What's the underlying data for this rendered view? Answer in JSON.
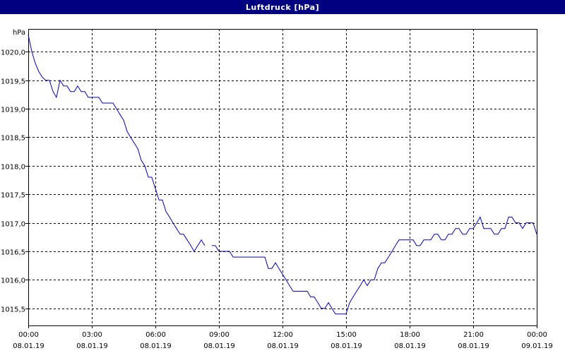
{
  "window": {
    "title": "Luftdruck [hPa]"
  },
  "chart_data": {
    "type": "line",
    "title": "Luftdruck [hPa]",
    "ylabel": "hPa",
    "xlabel": "",
    "grid": true,
    "ylim": [
      1015.2,
      1020.4
    ],
    "yticks": [
      "1020,0",
      "1019,5",
      "1019,0",
      "1018,5",
      "1018,0",
      "1017,5",
      "1017,0",
      "1016,5",
      "1016,0",
      "1015,5"
    ],
    "ytick_values": [
      1020.0,
      1019.5,
      1019.0,
      1018.5,
      1018.0,
      1017.5,
      1017.0,
      1016.5,
      1016.0,
      1015.5
    ],
    "xlim_hours": [
      0,
      24
    ],
    "xticks": [
      {
        "time": "00:00",
        "date": "08.01.19"
      },
      {
        "time": "03:00",
        "date": "08.01.19"
      },
      {
        "time": "06:00",
        "date": "08.01.19"
      },
      {
        "time": "09:00",
        "date": "08.01.19"
      },
      {
        "time": "12:00",
        "date": "08.01.19"
      },
      {
        "time": "15:00",
        "date": "08.01.19"
      },
      {
        "time": "18:00",
        "date": "08.01.19"
      },
      {
        "time": "21:00",
        "date": "08.01.19"
      },
      {
        "time": "00:00",
        "date": "09.01.19"
      }
    ],
    "series": [
      {
        "color": "#0000cc",
        "segments": [
          [
            [
              0.0,
              1020.3
            ],
            [
              0.17,
              1020.0
            ],
            [
              0.33,
              1019.8
            ],
            [
              0.5,
              1019.65
            ],
            [
              0.67,
              1019.55
            ],
            [
              0.83,
              1019.5
            ],
            [
              1.0,
              1019.5
            ],
            [
              1.17,
              1019.3
            ],
            [
              1.33,
              1019.2
            ],
            [
              1.5,
              1019.5
            ],
            [
              1.67,
              1019.4
            ],
            [
              1.83,
              1019.4
            ],
            [
              2.0,
              1019.3
            ],
            [
              2.17,
              1019.3
            ],
            [
              2.33,
              1019.4
            ],
            [
              2.5,
              1019.3
            ],
            [
              2.67,
              1019.3
            ],
            [
              2.83,
              1019.2
            ],
            [
              3.0,
              1019.2
            ],
            [
              3.17,
              1019.2
            ],
            [
              3.33,
              1019.2
            ],
            [
              3.5,
              1019.1
            ],
            [
              3.67,
              1019.1
            ],
            [
              3.83,
              1019.1
            ],
            [
              4.0,
              1019.1
            ],
            [
              4.17,
              1019.0
            ],
            [
              4.33,
              1018.9
            ],
            [
              4.5,
              1018.8
            ],
            [
              4.67,
              1018.6
            ],
            [
              4.83,
              1018.5
            ],
            [
              5.0,
              1018.4
            ],
            [
              5.17,
              1018.3
            ],
            [
              5.33,
              1018.1
            ],
            [
              5.5,
              1018.0
            ],
            [
              5.67,
              1017.8
            ],
            [
              5.83,
              1017.8
            ],
            [
              6.0,
              1017.6
            ],
            [
              6.17,
              1017.4
            ],
            [
              6.33,
              1017.4
            ],
            [
              6.5,
              1017.2
            ],
            [
              6.67,
              1017.1
            ],
            [
              6.83,
              1017.0
            ],
            [
              7.0,
              1016.9
            ],
            [
              7.17,
              1016.8
            ],
            [
              7.33,
              1016.8
            ],
            [
              7.5,
              1016.7
            ],
            [
              7.67,
              1016.6
            ],
            [
              7.83,
              1016.5
            ],
            [
              8.0,
              1016.6
            ],
            [
              8.17,
              1016.7
            ],
            [
              8.33,
              1016.6
            ]
          ],
          [
            [
              8.67,
              1016.6
            ],
            [
              8.83,
              1016.6
            ],
            [
              9.0,
              1016.5
            ],
            [
              9.17,
              1016.5
            ],
            [
              9.33,
              1016.5
            ],
            [
              9.5,
              1016.5
            ],
            [
              9.67,
              1016.4
            ],
            [
              9.83,
              1016.4
            ],
            [
              10.0,
              1016.4
            ],
            [
              10.17,
              1016.4
            ],
            [
              10.33,
              1016.4
            ],
            [
              10.5,
              1016.4
            ],
            [
              10.67,
              1016.4
            ],
            [
              10.83,
              1016.4
            ],
            [
              11.0,
              1016.4
            ],
            [
              11.17,
              1016.4
            ],
            [
              11.33,
              1016.2
            ],
            [
              11.5,
              1016.2
            ],
            [
              11.67,
              1016.3
            ],
            [
              11.83,
              1016.2
            ],
            [
              12.0,
              1016.1
            ],
            [
              12.17,
              1016.0
            ],
            [
              12.33,
              1015.9
            ],
            [
              12.5,
              1015.8
            ],
            [
              12.67,
              1015.8
            ],
            [
              12.83,
              1015.8
            ],
            [
              13.0,
              1015.8
            ],
            [
              13.17,
              1015.8
            ],
            [
              13.33,
              1015.7
            ],
            [
              13.5,
              1015.7
            ],
            [
              13.67,
              1015.6
            ],
            [
              13.83,
              1015.5
            ],
            [
              14.0,
              1015.5
            ],
            [
              14.17,
              1015.6
            ],
            [
              14.33,
              1015.5
            ],
            [
              14.5,
              1015.4
            ],
            [
              14.67,
              1015.4
            ],
            [
              14.83,
              1015.4
            ],
            [
              15.0,
              1015.4
            ],
            [
              15.17,
              1015.6
            ],
            [
              15.33,
              1015.7
            ],
            [
              15.5,
              1015.8
            ],
            [
              15.67,
              1015.9
            ],
            [
              15.83,
              1016.0
            ],
            [
              16.0,
              1015.9
            ],
            [
              16.17,
              1016.0
            ],
            [
              16.33,
              1016.0
            ],
            [
              16.5,
              1016.2
            ],
            [
              16.67,
              1016.3
            ],
            [
              16.83,
              1016.3
            ],
            [
              17.0,
              1016.4
            ],
            [
              17.17,
              1016.5
            ],
            [
              17.33,
              1016.6
            ],
            [
              17.5,
              1016.7
            ],
            [
              17.67,
              1016.7
            ],
            [
              17.83,
              1016.7
            ],
            [
              18.0,
              1016.7
            ],
            [
              18.17,
              1016.7
            ],
            [
              18.33,
              1016.6
            ],
            [
              18.5,
              1016.6
            ],
            [
              18.67,
              1016.7
            ],
            [
              18.83,
              1016.7
            ],
            [
              19.0,
              1016.7
            ],
            [
              19.17,
              1016.8
            ],
            [
              19.33,
              1016.8
            ],
            [
              19.5,
              1016.7
            ],
            [
              19.67,
              1016.7
            ],
            [
              19.83,
              1016.8
            ],
            [
              20.0,
              1016.8
            ],
            [
              20.17,
              1016.9
            ],
            [
              20.33,
              1016.9
            ],
            [
              20.5,
              1016.8
            ],
            [
              20.67,
              1016.8
            ],
            [
              20.83,
              1016.9
            ],
            [
              21.0,
              1016.9
            ],
            [
              21.17,
              1017.0
            ],
            [
              21.33,
              1017.1
            ],
            [
              21.5,
              1016.9
            ],
            [
              21.67,
              1016.9
            ],
            [
              21.83,
              1016.9
            ],
            [
              22.0,
              1016.8
            ],
            [
              22.17,
              1016.8
            ],
            [
              22.33,
              1016.9
            ],
            [
              22.5,
              1016.9
            ],
            [
              22.67,
              1017.1
            ],
            [
              22.83,
              1017.1
            ],
            [
              23.0,
              1017.0
            ],
            [
              23.17,
              1017.0
            ],
            [
              23.33,
              1016.9
            ],
            [
              23.5,
              1017.0
            ],
            [
              23.67,
              1017.0
            ],
            [
              23.83,
              1017.0
            ],
            [
              24.0,
              1016.8
            ]
          ]
        ]
      }
    ]
  }
}
